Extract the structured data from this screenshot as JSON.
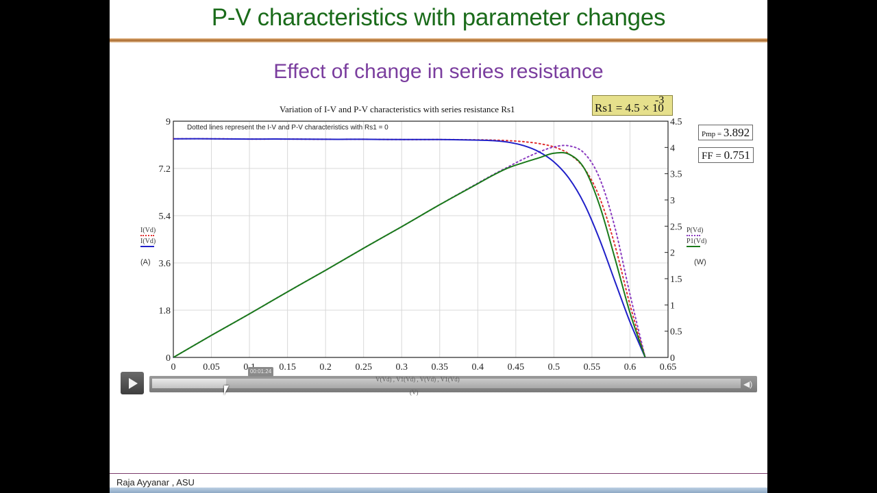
{
  "slide": {
    "title": "P-V characteristics with parameter changes",
    "subtitle": "Effect of change in series resistance",
    "footer": "Raja Ayyanar , ASU"
  },
  "params": {
    "rs_label": "Rs1 = 4.5 × 10",
    "rs_exponent": "-3",
    "pmp_label": "Pmp = ",
    "pmp_value": "3.892",
    "ff_label": "FF = ",
    "ff_value": "0.751"
  },
  "legend": {
    "left_dotted": "I(Vd)",
    "left_solid": "I(Vd)",
    "left_unit": "(A)",
    "right_dotted": "P(Vd)",
    "right_solid": "P1(Vd)",
    "right_unit": "(W)",
    "x_vars": "V(Vd) , V1(Vd) , V(Vd) , V1(Vd)",
    "x_unit": "(V)"
  },
  "player": {
    "timestamp": "00:01:24",
    "play_icon": "play-icon",
    "volume_icon": "volume-icon",
    "progress_percent": 12
  },
  "colors": {
    "title": "#1a6b1a",
    "subtitle": "#7a3d9e",
    "iv_rs": "#1f1fc8",
    "pv_rs": "#1a7a1a",
    "iv_rs0": "#e03030",
    "pv_rs0": "#8a3ac0"
  },
  "chart_data": {
    "type": "line",
    "title": "Variation of I-V and P-V characteristics with series resistance Rs1",
    "annotation": "Dotted lines represent the I-V and P-V characteristics with Rs1 = 0",
    "xlabel": "V(Vd) , V1(Vd) , V(Vd) , V1(Vd) (V)",
    "ylabel_left": "I(Vd) (A)",
    "ylabel_right": "P(Vd), P1(Vd) (W)",
    "xlim": [
      0,
      0.65
    ],
    "ylim_left": [
      0,
      9
    ],
    "ylim_right": [
      0,
      4.5
    ],
    "x_ticks": [
      "0",
      "0.05",
      "0.1",
      "0.15",
      "0.2",
      "0.25",
      "0.3",
      "0.35",
      "0.4",
      "0.45",
      "0.5",
      "0.55",
      "0.6",
      "0.65"
    ],
    "y_ticks_left": [
      "0",
      "1.8",
      "3.6",
      "5.4",
      "7.2",
      "9"
    ],
    "y_ticks_right": [
      "0",
      "0.5",
      "1",
      "1.5",
      "2",
      "2.5",
      "3",
      "3.5",
      "4",
      "4.5"
    ],
    "grid": true,
    "x": [
      0,
      0.05,
      0.1,
      0.15,
      0.2,
      0.25,
      0.3,
      0.35,
      0.4,
      0.42,
      0.44,
      0.46,
      0.48,
      0.5,
      0.52,
      0.54,
      0.56,
      0.58,
      0.6,
      0.62
    ],
    "series": [
      {
        "name": "I(Vd) Rs1=4.5e-3 (solid blue, left axis)",
        "axis": "left",
        "values": [
          8.33,
          8.33,
          8.32,
          8.32,
          8.31,
          8.31,
          8.3,
          8.3,
          8.28,
          8.26,
          8.2,
          8.07,
          7.84,
          7.45,
          6.82,
          5.85,
          4.5,
          2.92,
          1.35,
          0.0
        ]
      },
      {
        "name": "P1(Vd) Rs1=4.5e-3 (solid green, right axis)",
        "axis": "right",
        "values": [
          0,
          0.42,
          0.83,
          1.25,
          1.66,
          2.08,
          2.49,
          2.91,
          3.31,
          3.47,
          3.61,
          3.71,
          3.8,
          3.89,
          3.87,
          3.6,
          2.9,
          1.9,
          0.85,
          0.0
        ]
      },
      {
        "name": "I(Vd) Rs1=0 (dotted red, left axis)",
        "axis": "left",
        "values": [
          8.33,
          8.33,
          8.32,
          8.32,
          8.31,
          8.31,
          8.3,
          8.3,
          8.29,
          8.28,
          8.26,
          8.22,
          8.15,
          8.02,
          7.75,
          7.2,
          6.1,
          4.3,
          2.0,
          0.0
        ]
      },
      {
        "name": "P(Vd) Rs1=0 (dotted purple, right axis)",
        "axis": "right",
        "values": [
          0,
          0.42,
          0.83,
          1.25,
          1.66,
          2.08,
          2.49,
          2.91,
          3.32,
          3.48,
          3.63,
          3.78,
          3.91,
          4.01,
          4.03,
          3.89,
          3.42,
          2.49,
          1.2,
          0.0
        ]
      }
    ],
    "summary": {
      "Pmp": 3.892,
      "FF": 0.751,
      "Rs1": "4.5e-3"
    }
  }
}
